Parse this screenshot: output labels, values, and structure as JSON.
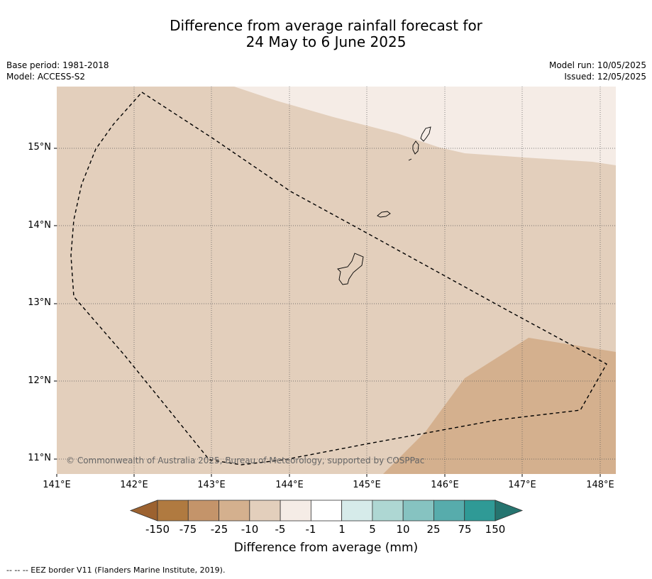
{
  "title_line1": "Difference from average rainfall forecast for",
  "title_line2": "24 May to 6 June 2025",
  "meta_left": {
    "base_period": "Base period: 1981-2018",
    "model": "Model: ACCESS-S2"
  },
  "meta_right": {
    "model_run": "Model run: 10/05/2025",
    "issued": "Issued: 12/05/2025"
  },
  "map": {
    "lat_labels": [
      "15°N",
      "14°N",
      "13°N",
      "12°N",
      "11°N"
    ],
    "lon_labels": [
      "141°E",
      "142°E",
      "143°E",
      "144°E",
      "145°E",
      "146°E",
      "147°E",
      "148°E"
    ],
    "copyright": "© Commonwealth of Australia 2025, Bureau of Meteorology, supported by COSPPac",
    "islands": [
      "Guam",
      "Rota",
      "Tinian",
      "Saipan"
    ]
  },
  "colorbar": {
    "title": "Difference from average (mm)",
    "ticks": [
      "-150",
      "-75",
      "-25",
      "-10",
      "-5",
      "-1",
      "1",
      "5",
      "10",
      "25",
      "75",
      "150"
    ],
    "colors": [
      "#9c6230",
      "#b07a40",
      "#c4946a",
      "#d4b08e",
      "#e3cfbc",
      "#f5ece6",
      "#ffffff",
      "#d6ebea",
      "#aed7d3",
      "#86c3c1",
      "#57acac",
      "#2f9a96",
      "#25746f"
    ]
  },
  "footnote": "--  --  -- EEZ border V11 (Flanders Marine Institute, 2019)."
}
